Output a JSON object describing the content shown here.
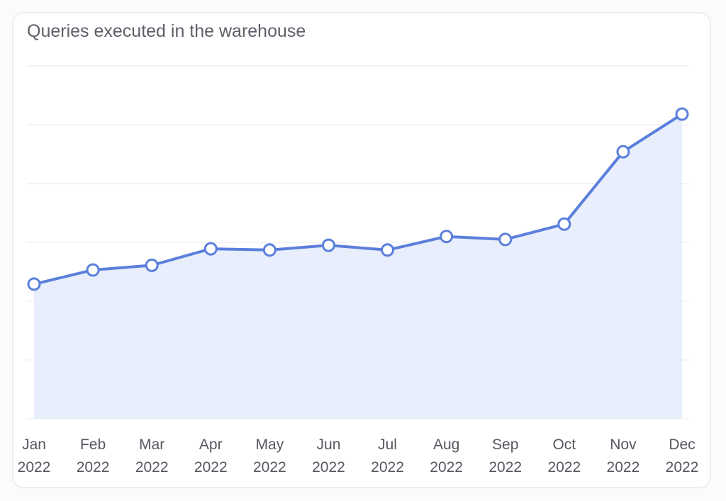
{
  "chart_data": {
    "type": "area",
    "title": "Queries executed in the warehouse",
    "categories": [
      "Jan 2022",
      "Feb 2022",
      "Mar 2022",
      "Apr 2022",
      "May 2022",
      "Jun 2022",
      "Jul 2022",
      "Aug 2022",
      "Sep 2022",
      "Oct 2022",
      "Nov 2022",
      "Dec 2022"
    ],
    "tick_labels": [
      [
        "Jan",
        "2022"
      ],
      [
        "Feb",
        "2022"
      ],
      [
        "Mar",
        "2022"
      ],
      [
        "Apr",
        "2022"
      ],
      [
        "May",
        "2022"
      ],
      [
        "Jun",
        "2022"
      ],
      [
        "Jul",
        "2022"
      ],
      [
        "Aug",
        "2022"
      ],
      [
        "Sep",
        "2022"
      ],
      [
        "Oct",
        "2022"
      ],
      [
        "Nov",
        "2022"
      ],
      [
        "Dec",
        "2022"
      ]
    ],
    "values": [
      2.29,
      2.53,
      2.61,
      2.89,
      2.87,
      2.95,
      2.87,
      3.1,
      3.05,
      3.31,
      4.54,
      5.18
    ],
    "ylim": [
      0,
      6
    ],
    "y_tick_labels_shown": false,
    "grid": true,
    "xlabel": "",
    "ylabel": "",
    "colors": {
      "line": "#5b7fdc",
      "fill": "#e8eefb",
      "grid": "#eef0f3"
    }
  }
}
